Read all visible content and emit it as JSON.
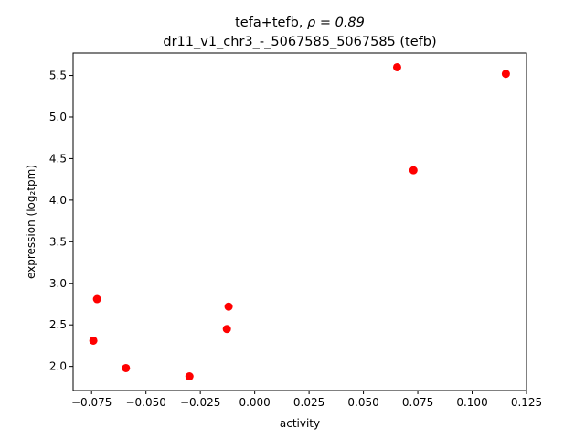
{
  "chart_data": {
    "type": "scatter",
    "title_prefix": "tefa+tefb, ",
    "title_rho": "ρ = 0.89",
    "subtitle": "dr11_v1_chr3_-_5067585_5067585 (tefb)",
    "xlabel": "activity",
    "ylabel": "expression (log₂tpm)",
    "xlim": [
      -0.0835,
      0.125
    ],
    "ylim": [
      1.71,
      5.77
    ],
    "xticks": [
      -0.075,
      -0.05,
      -0.025,
      0.0,
      0.025,
      0.05,
      0.075,
      0.1,
      0.125
    ],
    "xtick_labels": [
      "−0.075",
      "−0.050",
      "−0.025",
      "0.000",
      "0.025",
      "0.050",
      "0.075",
      "0.100",
      "0.125"
    ],
    "yticks": [
      2.0,
      2.5,
      3.0,
      3.5,
      4.0,
      4.5,
      5.0,
      5.5
    ],
    "ytick_labels": [
      "2.0",
      "2.5",
      "3.0",
      "3.5",
      "4.0",
      "4.5",
      "5.0",
      "5.5"
    ],
    "marker_color": "#ff0000",
    "grid": false,
    "points": [
      {
        "x": -0.0742,
        "y": 2.31
      },
      {
        "x": -0.0725,
        "y": 2.81
      },
      {
        "x": -0.0592,
        "y": 1.98
      },
      {
        "x": -0.03,
        "y": 1.88
      },
      {
        "x": -0.0128,
        "y": 2.45
      },
      {
        "x": -0.012,
        "y": 2.72
      },
      {
        "x": 0.0655,
        "y": 5.6
      },
      {
        "x": 0.073,
        "y": 4.36
      },
      {
        "x": 0.1155,
        "y": 5.52
      }
    ]
  }
}
